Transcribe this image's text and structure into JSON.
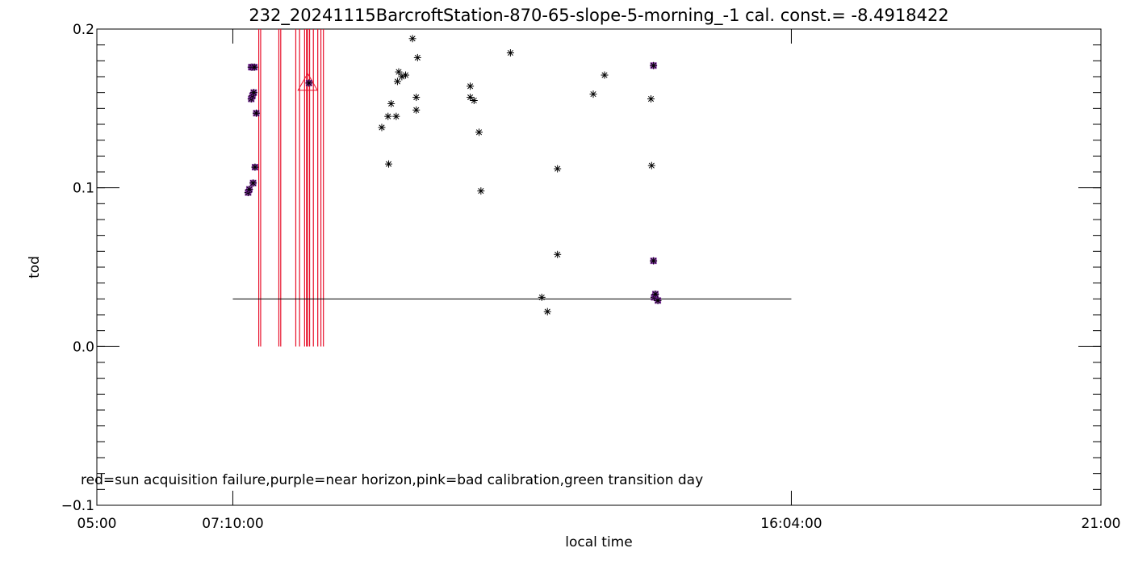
{
  "chart_data": {
    "type": "scatter",
    "title": "232_20241115BarcroftStation-870-65-slope-5-morning_-1 cal. const.= -8.4918422",
    "xlabel": "local time",
    "ylabel": "tod",
    "x_unit": "hours",
    "xlim": [
      5.0,
      21.0
    ],
    "ylim": [
      -0.1,
      0.2
    ],
    "x_tick_labels": [
      {
        "x": 5.0,
        "label": "05:00"
      },
      {
        "x": 7.1667,
        "label": "07:10:00"
      },
      {
        "x": 16.0667,
        "label": "16:04:00"
      },
      {
        "x": 21.0,
        "label": "21:00"
      }
    ],
    "y_tick_labels": [
      {
        "y": -0.1,
        "label": "−0.1"
      },
      {
        "y": 0.0,
        "label": "0.0"
      },
      {
        "y": 0.1,
        "label": "0.1"
      },
      {
        "y": 0.2,
        "label": "0.2"
      }
    ],
    "y_minor_step": 0.01,
    "note": "red=sun acquisition failure,purple=near horizon,pink=bad calibration,green transition day",
    "colors": {
      "normal": "#000000",
      "near_horizon": "#7b1fa2",
      "sun_failure": "#e8102a",
      "axes": "#000000"
    },
    "reference_line": {
      "x_start": 7.1667,
      "x_end": 16.0667,
      "y": 0.03
    },
    "sun_failure_lines_x": [
      7.58,
      7.61,
      7.9,
      7.93,
      8.17,
      8.23,
      8.31,
      8.34,
      8.36,
      8.39,
      8.45,
      8.52,
      8.57,
      8.61
    ],
    "triangle_marker": {
      "x": 8.36,
      "y": 0.166
    },
    "points": [
      {
        "x": 7.41,
        "y": 0.097,
        "flag": "near_horizon"
      },
      {
        "x": 7.43,
        "y": 0.099,
        "flag": "near_horizon"
      },
      {
        "x": 7.49,
        "y": 0.103,
        "flag": "near_horizon"
      },
      {
        "x": 7.52,
        "y": 0.113,
        "flag": "near_horizon"
      },
      {
        "x": 7.54,
        "y": 0.147,
        "flag": "near_horizon"
      },
      {
        "x": 7.46,
        "y": 0.156,
        "flag": "near_horizon"
      },
      {
        "x": 7.48,
        "y": 0.158,
        "flag": "near_horizon"
      },
      {
        "x": 7.5,
        "y": 0.16,
        "flag": "near_horizon"
      },
      {
        "x": 7.46,
        "y": 0.176,
        "flag": "near_horizon"
      },
      {
        "x": 7.48,
        "y": 0.176,
        "flag": "near_horizon"
      },
      {
        "x": 7.51,
        "y": 0.176,
        "flag": "near_horizon"
      },
      {
        "x": 8.38,
        "y": 0.166,
        "flag": "near_horizon"
      },
      {
        "x": 9.54,
        "y": 0.138,
        "flag": "normal"
      },
      {
        "x": 9.64,
        "y": 0.145,
        "flag": "normal"
      },
      {
        "x": 9.65,
        "y": 0.115,
        "flag": "normal"
      },
      {
        "x": 9.69,
        "y": 0.153,
        "flag": "normal"
      },
      {
        "x": 9.77,
        "y": 0.145,
        "flag": "normal"
      },
      {
        "x": 9.79,
        "y": 0.167,
        "flag": "normal"
      },
      {
        "x": 9.81,
        "y": 0.173,
        "flag": "normal"
      },
      {
        "x": 9.86,
        "y": 0.17,
        "flag": "normal"
      },
      {
        "x": 9.92,
        "y": 0.171,
        "flag": "normal"
      },
      {
        "x": 10.03,
        "y": 0.194,
        "flag": "normal"
      },
      {
        "x": 10.09,
        "y": 0.157,
        "flag": "normal"
      },
      {
        "x": 10.09,
        "y": 0.149,
        "flag": "normal"
      },
      {
        "x": 10.11,
        "y": 0.182,
        "flag": "normal"
      },
      {
        "x": 10.95,
        "y": 0.164,
        "flag": "normal"
      },
      {
        "x": 10.95,
        "y": 0.157,
        "flag": "normal"
      },
      {
        "x": 11.01,
        "y": 0.155,
        "flag": "normal"
      },
      {
        "x": 11.09,
        "y": 0.135,
        "flag": "normal"
      },
      {
        "x": 11.12,
        "y": 0.098,
        "flag": "normal"
      },
      {
        "x": 11.59,
        "y": 0.185,
        "flag": "normal"
      },
      {
        "x": 12.09,
        "y": 0.031,
        "flag": "normal"
      },
      {
        "x": 12.18,
        "y": 0.022,
        "flag": "normal"
      },
      {
        "x": 12.34,
        "y": 0.112,
        "flag": "normal"
      },
      {
        "x": 12.34,
        "y": 0.058,
        "flag": "normal"
      },
      {
        "x": 12.91,
        "y": 0.159,
        "flag": "normal"
      },
      {
        "x": 13.09,
        "y": 0.171,
        "flag": "normal"
      },
      {
        "x": 13.83,
        "y": 0.156,
        "flag": "normal"
      },
      {
        "x": 13.84,
        "y": 0.114,
        "flag": "normal"
      },
      {
        "x": 13.87,
        "y": 0.177,
        "flag": "near_horizon"
      },
      {
        "x": 13.87,
        "y": 0.054,
        "flag": "near_horizon"
      },
      {
        "x": 13.88,
        "y": 0.031,
        "flag": "near_horizon"
      },
      {
        "x": 13.9,
        "y": 0.033,
        "flag": "near_horizon"
      },
      {
        "x": 13.94,
        "y": 0.029,
        "flag": "near_horizon"
      }
    ]
  }
}
